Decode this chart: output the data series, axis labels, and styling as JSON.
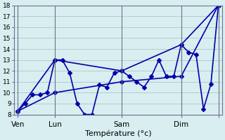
{
  "background_color": "#d8eef0",
  "grid_color": "#b0cdd0",
  "line_color": "#0000aa",
  "xlabel": "Température (°c)",
  "ylim": [
    8,
    18
  ],
  "yticks": [
    8,
    9,
    10,
    11,
    12,
    13,
    14,
    15,
    16,
    17,
    18
  ],
  "x_tick_positions": [
    0,
    5,
    14,
    22,
    27
  ],
  "x_tick_labels": [
    "Ven",
    "Lun",
    "Sam",
    "Dim",
    ""
  ],
  "line1_x": [
    0,
    1,
    2,
    3,
    4,
    5,
    6,
    7,
    8,
    9,
    10,
    11,
    12,
    13,
    14,
    15,
    16,
    17,
    18,
    19,
    20,
    21,
    22,
    23,
    24,
    25,
    26,
    27
  ],
  "line1_y": [
    8.3,
    9.0,
    9.8,
    9.8,
    10.0,
    13.0,
    13.0,
    11.8,
    9.0,
    8.0,
    8.0,
    10.7,
    10.5,
    11.8,
    12.0,
    11.5,
    11.0,
    10.5,
    11.5,
    13.0,
    11.5,
    11.5,
    14.4,
    13.7,
    13.5,
    8.5,
    10.8,
    18.0
  ],
  "line2_x": [
    0,
    5,
    14,
    22,
    27
  ],
  "line2_y": [
    8.3,
    13.0,
    12.0,
    14.4,
    18.0
  ],
  "line3_x": [
    0,
    5,
    14,
    22,
    27
  ],
  "line3_y": [
    8.3,
    10.0,
    11.0,
    11.5,
    18.0
  ],
  "marker_style": "D",
  "marker_size": 3,
  "line_width": 1.2
}
